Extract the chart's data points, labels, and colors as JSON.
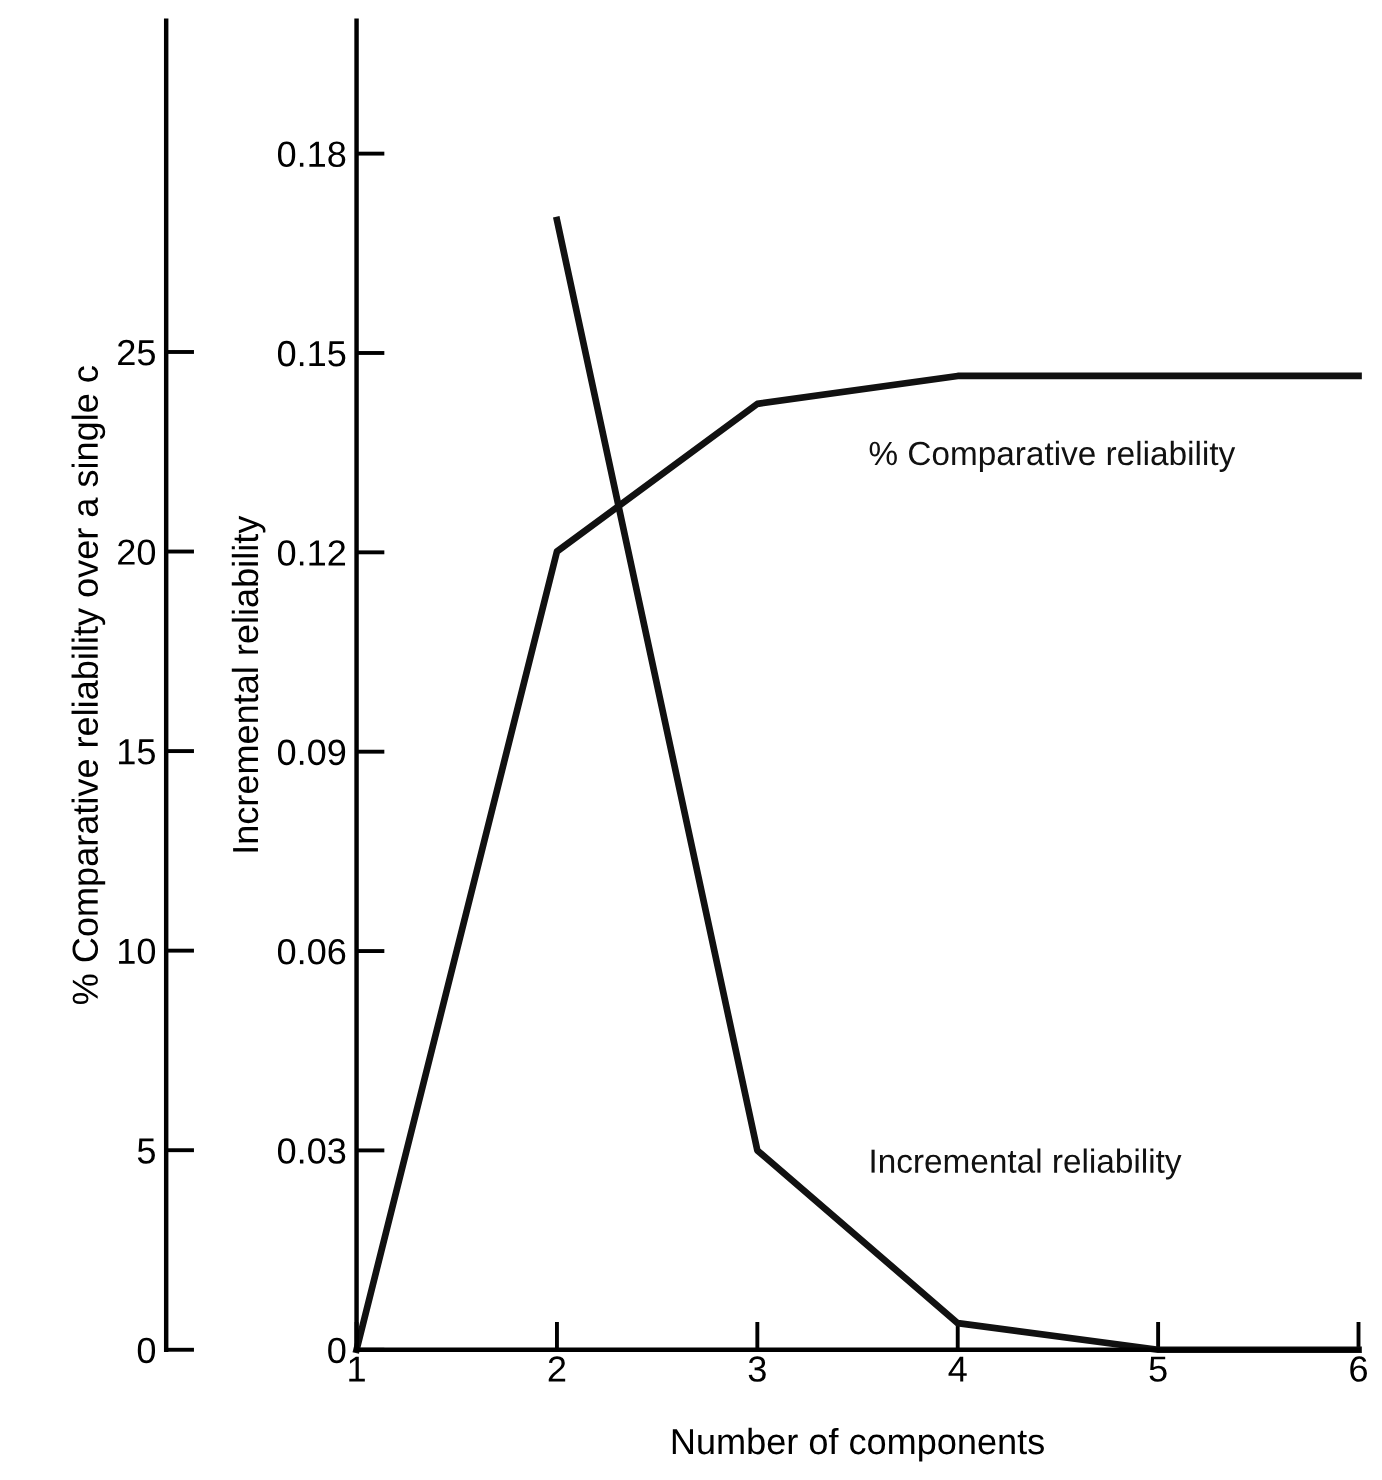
{
  "chart_data": {
    "type": "line",
    "xlabel": "Number of components",
    "ylabel": "Incremental reliability",
    "y2label": "% Comparative reliability over a single c",
    "x": [
      1,
      2,
      3,
      4,
      5,
      6
    ],
    "xlim": [
      1,
      6
    ],
    "xticks": [
      1,
      2,
      3,
      4,
      5,
      6
    ],
    "ylim": [
      0,
      0.2
    ],
    "yticks": [
      {
        "value": 0,
        "label": "0"
      },
      0.03,
      0.06,
      0.09,
      0.12,
      0.15,
      0.18
    ],
    "y2lim": [
      0,
      33.3
    ],
    "y2ticks": [
      0,
      5,
      10,
      15,
      20,
      25
    ],
    "series": [
      {
        "name": "% Comparative reliability",
        "color": "#111111",
        "axis": "y2",
        "values": [
          0,
          20,
          23.7,
          24.4,
          24.4,
          24.4
        ]
      },
      {
        "name": "Incremental reliability",
        "color": "#111111",
        "values": [
          null,
          0.17,
          0.03,
          0.004,
          0,
          0
        ]
      }
    ],
    "grid": false,
    "legend": false,
    "marker": "none",
    "line_style": "solid"
  }
}
